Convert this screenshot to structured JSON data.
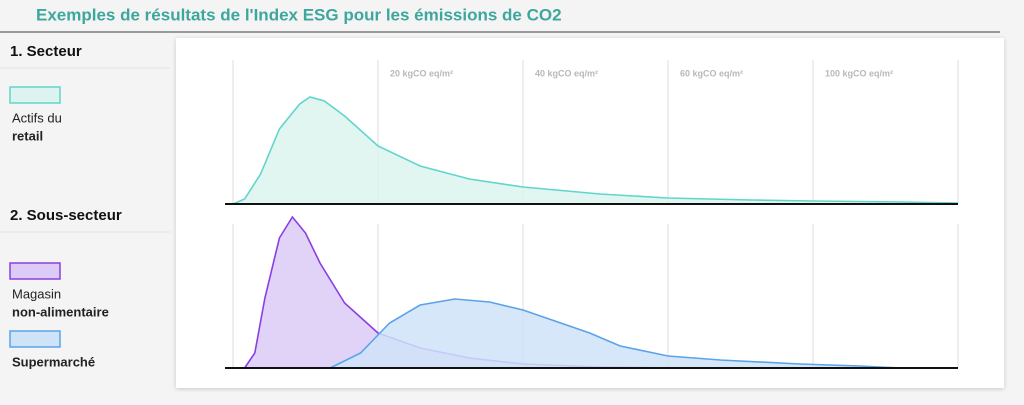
{
  "title": "Exemples de résultats de l'Index ESG pour les émissions de CO2",
  "chart_data": [
    {
      "type": "area",
      "section": "1. Secteur",
      "categories": [
        null,
        "20 kgCO eq/m²",
        "40 kgCO eq/m²",
        "60 kgCO eq/m²",
        "100 kgCO eq/m²",
        null
      ],
      "xlim": [
        0,
        5
      ],
      "ylim": [
        0,
        160
      ],
      "series": [
        {
          "name_lines": [
            "Actifs du",
            "retail"
          ],
          "color": "#5fd6cb",
          "fill": "#dcf3ef",
          "x": [
            0,
            0.08,
            0.19,
            0.32,
            0.46,
            0.53,
            0.63,
            0.77,
            1,
            1.29,
            1.63,
            2,
            2.53,
            3,
            3.57,
            4,
            4.6,
            5
          ],
          "values": [
            0,
            5,
            30,
            75,
            100,
            107,
            103,
            88,
            58,
            38,
            25,
            17,
            10,
            6,
            4,
            3,
            2,
            1
          ]
        }
      ]
    },
    {
      "type": "area",
      "section": "2. Sous-secteur",
      "xlim": [
        0,
        5
      ],
      "ylim": [
        0,
        160
      ],
      "series": [
        {
          "name_lines": [
            "Magasin",
            "non-alimentaire"
          ],
          "color": "#8a3fe0",
          "fill": "#dccbf7",
          "x": [
            0.08,
            0.15,
            0.22,
            0.32,
            0.41,
            0.5,
            0.6,
            0.77,
            1,
            1.29,
            1.63,
            2,
            2.53,
            3.15
          ],
          "values": [
            0,
            15,
            70,
            130,
            151,
            135,
            105,
            65,
            35,
            20,
            10,
            4,
            1,
            0
          ]
        },
        {
          "name_lines": [
            "Supermarché"
          ],
          "color": "#5aa3e8",
          "fill": "#cfe3f8",
          "x": [
            0.67,
            0.88,
            1.08,
            1.29,
            1.53,
            1.77,
            2,
            2.26,
            2.46,
            2.67,
            3,
            3.36,
            3.91,
            4.32,
            4.6
          ],
          "values": [
            0,
            15,
            45,
            63,
            69,
            66,
            58,
            45,
            35,
            22,
            12,
            8,
            4,
            2,
            0
          ]
        }
      ]
    }
  ]
}
